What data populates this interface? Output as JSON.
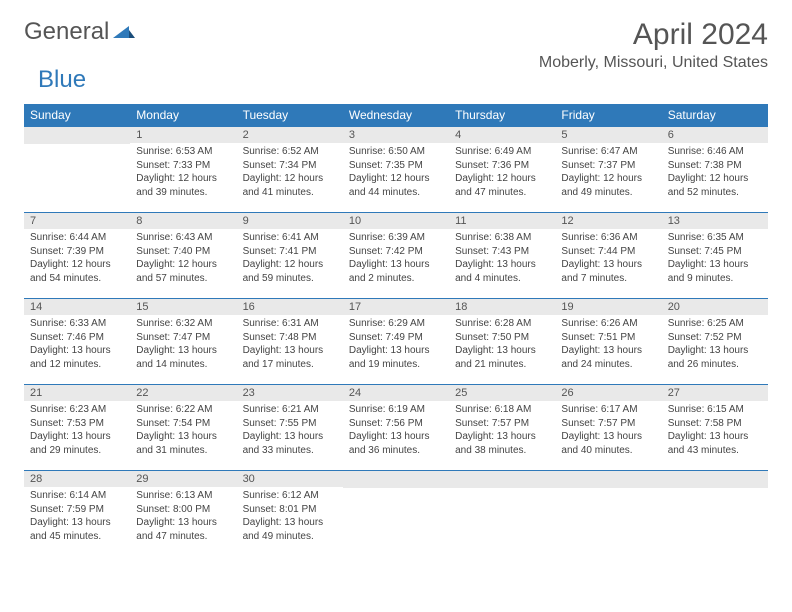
{
  "logo": {
    "part1": "General",
    "part2": "Blue"
  },
  "title": "April 2024",
  "location": "Moberly, Missouri, United States",
  "colors": {
    "accent": "#2f79b9",
    "header_bg": "#2f79b9",
    "header_text": "#ffffff",
    "daynum_bg": "#e9e9e9",
    "text": "#444444",
    "title_text": "#555555"
  },
  "day_headers": [
    "Sunday",
    "Monday",
    "Tuesday",
    "Wednesday",
    "Thursday",
    "Friday",
    "Saturday"
  ],
  "weeks": [
    [
      {
        "num": "",
        "sunrise": "",
        "sunset": "",
        "daylight": ""
      },
      {
        "num": "1",
        "sunrise": "Sunrise: 6:53 AM",
        "sunset": "Sunset: 7:33 PM",
        "daylight": "Daylight: 12 hours and 39 minutes."
      },
      {
        "num": "2",
        "sunrise": "Sunrise: 6:52 AM",
        "sunset": "Sunset: 7:34 PM",
        "daylight": "Daylight: 12 hours and 41 minutes."
      },
      {
        "num": "3",
        "sunrise": "Sunrise: 6:50 AM",
        "sunset": "Sunset: 7:35 PM",
        "daylight": "Daylight: 12 hours and 44 minutes."
      },
      {
        "num": "4",
        "sunrise": "Sunrise: 6:49 AM",
        "sunset": "Sunset: 7:36 PM",
        "daylight": "Daylight: 12 hours and 47 minutes."
      },
      {
        "num": "5",
        "sunrise": "Sunrise: 6:47 AM",
        "sunset": "Sunset: 7:37 PM",
        "daylight": "Daylight: 12 hours and 49 minutes."
      },
      {
        "num": "6",
        "sunrise": "Sunrise: 6:46 AM",
        "sunset": "Sunset: 7:38 PM",
        "daylight": "Daylight: 12 hours and 52 minutes."
      }
    ],
    [
      {
        "num": "7",
        "sunrise": "Sunrise: 6:44 AM",
        "sunset": "Sunset: 7:39 PM",
        "daylight": "Daylight: 12 hours and 54 minutes."
      },
      {
        "num": "8",
        "sunrise": "Sunrise: 6:43 AM",
        "sunset": "Sunset: 7:40 PM",
        "daylight": "Daylight: 12 hours and 57 minutes."
      },
      {
        "num": "9",
        "sunrise": "Sunrise: 6:41 AM",
        "sunset": "Sunset: 7:41 PM",
        "daylight": "Daylight: 12 hours and 59 minutes."
      },
      {
        "num": "10",
        "sunrise": "Sunrise: 6:39 AM",
        "sunset": "Sunset: 7:42 PM",
        "daylight": "Daylight: 13 hours and 2 minutes."
      },
      {
        "num": "11",
        "sunrise": "Sunrise: 6:38 AM",
        "sunset": "Sunset: 7:43 PM",
        "daylight": "Daylight: 13 hours and 4 minutes."
      },
      {
        "num": "12",
        "sunrise": "Sunrise: 6:36 AM",
        "sunset": "Sunset: 7:44 PM",
        "daylight": "Daylight: 13 hours and 7 minutes."
      },
      {
        "num": "13",
        "sunrise": "Sunrise: 6:35 AM",
        "sunset": "Sunset: 7:45 PM",
        "daylight": "Daylight: 13 hours and 9 minutes."
      }
    ],
    [
      {
        "num": "14",
        "sunrise": "Sunrise: 6:33 AM",
        "sunset": "Sunset: 7:46 PM",
        "daylight": "Daylight: 13 hours and 12 minutes."
      },
      {
        "num": "15",
        "sunrise": "Sunrise: 6:32 AM",
        "sunset": "Sunset: 7:47 PM",
        "daylight": "Daylight: 13 hours and 14 minutes."
      },
      {
        "num": "16",
        "sunrise": "Sunrise: 6:31 AM",
        "sunset": "Sunset: 7:48 PM",
        "daylight": "Daylight: 13 hours and 17 minutes."
      },
      {
        "num": "17",
        "sunrise": "Sunrise: 6:29 AM",
        "sunset": "Sunset: 7:49 PM",
        "daylight": "Daylight: 13 hours and 19 minutes."
      },
      {
        "num": "18",
        "sunrise": "Sunrise: 6:28 AM",
        "sunset": "Sunset: 7:50 PM",
        "daylight": "Daylight: 13 hours and 21 minutes."
      },
      {
        "num": "19",
        "sunrise": "Sunrise: 6:26 AM",
        "sunset": "Sunset: 7:51 PM",
        "daylight": "Daylight: 13 hours and 24 minutes."
      },
      {
        "num": "20",
        "sunrise": "Sunrise: 6:25 AM",
        "sunset": "Sunset: 7:52 PM",
        "daylight": "Daylight: 13 hours and 26 minutes."
      }
    ],
    [
      {
        "num": "21",
        "sunrise": "Sunrise: 6:23 AM",
        "sunset": "Sunset: 7:53 PM",
        "daylight": "Daylight: 13 hours and 29 minutes."
      },
      {
        "num": "22",
        "sunrise": "Sunrise: 6:22 AM",
        "sunset": "Sunset: 7:54 PM",
        "daylight": "Daylight: 13 hours and 31 minutes."
      },
      {
        "num": "23",
        "sunrise": "Sunrise: 6:21 AM",
        "sunset": "Sunset: 7:55 PM",
        "daylight": "Daylight: 13 hours and 33 minutes."
      },
      {
        "num": "24",
        "sunrise": "Sunrise: 6:19 AM",
        "sunset": "Sunset: 7:56 PM",
        "daylight": "Daylight: 13 hours and 36 minutes."
      },
      {
        "num": "25",
        "sunrise": "Sunrise: 6:18 AM",
        "sunset": "Sunset: 7:57 PM",
        "daylight": "Daylight: 13 hours and 38 minutes."
      },
      {
        "num": "26",
        "sunrise": "Sunrise: 6:17 AM",
        "sunset": "Sunset: 7:57 PM",
        "daylight": "Daylight: 13 hours and 40 minutes."
      },
      {
        "num": "27",
        "sunrise": "Sunrise: 6:15 AM",
        "sunset": "Sunset: 7:58 PM",
        "daylight": "Daylight: 13 hours and 43 minutes."
      }
    ],
    [
      {
        "num": "28",
        "sunrise": "Sunrise: 6:14 AM",
        "sunset": "Sunset: 7:59 PM",
        "daylight": "Daylight: 13 hours and 45 minutes."
      },
      {
        "num": "29",
        "sunrise": "Sunrise: 6:13 AM",
        "sunset": "Sunset: 8:00 PM",
        "daylight": "Daylight: 13 hours and 47 minutes."
      },
      {
        "num": "30",
        "sunrise": "Sunrise: 6:12 AM",
        "sunset": "Sunset: 8:01 PM",
        "daylight": "Daylight: 13 hours and 49 minutes."
      },
      {
        "num": "",
        "sunrise": "",
        "sunset": "",
        "daylight": ""
      },
      {
        "num": "",
        "sunrise": "",
        "sunset": "",
        "daylight": ""
      },
      {
        "num": "",
        "sunrise": "",
        "sunset": "",
        "daylight": ""
      },
      {
        "num": "",
        "sunrise": "",
        "sunset": "",
        "daylight": ""
      }
    ]
  ]
}
